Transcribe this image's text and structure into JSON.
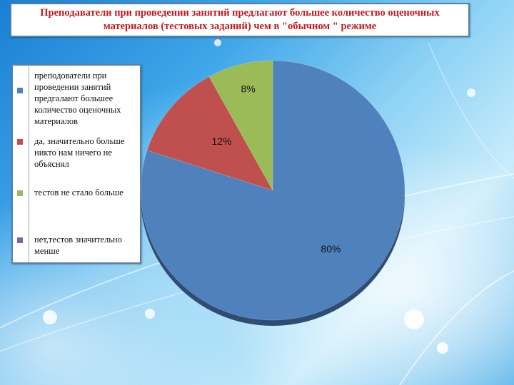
{
  "chart_data": {
    "type": "pie",
    "title": "Преподаватели при проведении занятий предлагают большее количество оценочных материалов (тестовых заданий) чем в \"обычном \" режиме",
    "legend_position": "left",
    "slices": [
      {
        "label": "преподователи при проведении занятий предгалают большее количество оценочных материалов",
        "value": 80,
        "display": "80%",
        "color": "#4f81bd"
      },
      {
        "label": "да, значительно больше никто нам ничего не объяснял",
        "value": 12,
        "display": "12%",
        "color": "#c0504d"
      },
      {
        "label": "тестов не стало больше",
        "value": 8,
        "display": "8%",
        "color": "#9bbb59"
      },
      {
        "label": "нет,тестов значительно менше",
        "value": 0,
        "display": "",
        "color": "#8064a2"
      }
    ]
  }
}
